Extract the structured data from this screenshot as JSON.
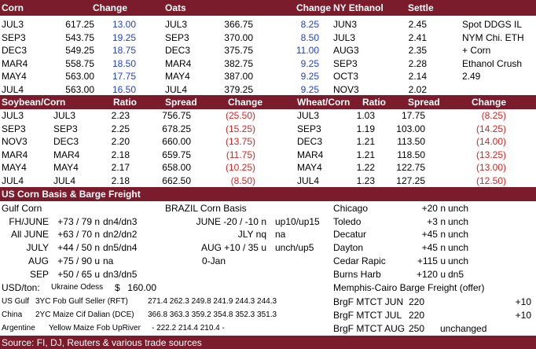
{
  "grains": {
    "headers": [
      "Corn",
      "Change",
      "Oats",
      "Change",
      "NY Ethanol",
      "Settle"
    ],
    "rows": [
      [
        "JUL3",
        "617.25",
        "13.00",
        "JUL3",
        "366.75",
        "8.25",
        "JUN3",
        "2.45"
      ],
      [
        "SEP3",
        "543.75",
        "19.25",
        "SEP3",
        "370.00",
        "8.50",
        "JUL3",
        "2.41"
      ],
      [
        "DEC3",
        "549.25",
        "18.75",
        "DEC3",
        "375.75",
        "11.00",
        "AUG3",
        "2.35"
      ],
      [
        "MAR4",
        "558.75",
        "18.50",
        "MAR4",
        "382.75",
        "9.25",
        "SEP3",
        "2.28"
      ],
      [
        "MAY4",
        "563.00",
        "17.75",
        "MAY4",
        "387.00",
        "9.25",
        "OCT3",
        "2.14"
      ],
      [
        "JUL4",
        "563.00",
        "16.50",
        "JUL4",
        "379.25",
        "9.25",
        "NOV3",
        "2.02"
      ]
    ],
    "notes": [
      "Spot DDGS IL",
      "NYM Chi. ETH",
      "+ Corn",
      "Ethanol Crush",
      "2.49"
    ]
  },
  "spreads": {
    "headers": [
      "Soybean/Corn",
      "Ratio",
      "Spread",
      "Change",
      "Wheat/Corn",
      "Ratio",
      "Spread",
      "Change"
    ],
    "rows": [
      [
        "JUL3",
        "JUL3",
        "2.23",
        "756.75",
        "(25.50)",
        "JUL3",
        "1.03",
        "17.75",
        "(8.25)"
      ],
      [
        "SEP3",
        "SEP3",
        "2.25",
        "678.25",
        "(15.25)",
        "SEP3",
        "1.19",
        "103.00",
        "(14.25)"
      ],
      [
        "NOV3",
        "DEC3",
        "2.20",
        "660.00",
        "(13.75)",
        "DEC3",
        "1.21",
        "113.50",
        "(14.00)"
      ],
      [
        "MAR4",
        "MAR4",
        "2.18",
        "659.75",
        "(11.75)",
        "MAR4",
        "1.21",
        "118.50",
        "(13.25)"
      ],
      [
        "MAY4",
        "MAY4",
        "2.17",
        "658.00",
        "(10.25)",
        "MAY4",
        "1.22",
        "122.75",
        "(13.00)"
      ],
      [
        "JUL4",
        "JUL4",
        "2.18",
        "662.50",
        "(8.50)",
        "JUL4",
        "1.23",
        "127.25",
        "(12.50)"
      ]
    ]
  },
  "basis": {
    "title": "US Corn Basis & Barge Freight",
    "gulf": {
      "title": "Gulf Corn",
      "rows": [
        [
          "FH/JUNE",
          "+73 / 79 n",
          "dn4/dn3"
        ],
        [
          "All JUNE",
          "+63 / 70 n",
          "dn2/dn2"
        ],
        [
          "JULY",
          "+44 / 50 n",
          "dn5/dn4"
        ],
        [
          "AUG",
          "+75 / 90 u",
          "na"
        ],
        [
          "SEP",
          "+50 / 65 u",
          "dn3/dn5"
        ]
      ]
    },
    "brazil": {
      "title": "BRAZIL Corn Basis",
      "rows": [
        [
          "JUNE -20 / -10 n",
          "up10/up15"
        ],
        [
          "JLY nq",
          "na"
        ],
        [
          "AUG +10 / 35 u",
          "unch/up5"
        ],
        [
          "0-Jan"
        ]
      ]
    },
    "interior": {
      "rows": [
        [
          "Chicago",
          "+20 n",
          "unch"
        ],
        [
          "Toledo",
          "+3 n",
          "unch"
        ],
        [
          "Decatur",
          "+45 n",
          "unch"
        ],
        [
          "Dayton",
          "+45 n",
          "unch"
        ],
        [
          "Cedar Rapic",
          "+115 u",
          "unch"
        ],
        [
          "Burns Harb",
          "+120 u",
          "dn5"
        ]
      ]
    }
  },
  "freight": {
    "usd": [
      "USD/ton:",
      "Ukraine Odess",
      "$",
      "160.00"
    ],
    "fob": [
      [
        "US Gulf",
        "3YC Fob Gulf Seller (RFT)",
        "271.4 262.3 249.8 241.9 244.3 244.3"
      ],
      [
        "China",
        "2YC Maize Cif Dalian (DCE)",
        "366.8 363.3 359.2 354.8 352.3 351.3"
      ],
      [
        "Argentine",
        "Yellow Maize Fob UpRiver",
        "- 222.2 214.4 210.4 -"
      ]
    ],
    "barge": {
      "title": "Memphis-Cairo Barge Freight (offer)",
      "rows": [
        [
          "BrgF MTCT JUN",
          "220",
          "+10"
        ],
        [
          "BrgF MTCT JUL",
          "220",
          "+10"
        ],
        [
          "BrgF MTCT AUG",
          "250",
          "unchanged"
        ]
      ]
    }
  },
  "footer": {
    "source": "Source: FI, DJ, Reuters & various trade sources"
  }
}
